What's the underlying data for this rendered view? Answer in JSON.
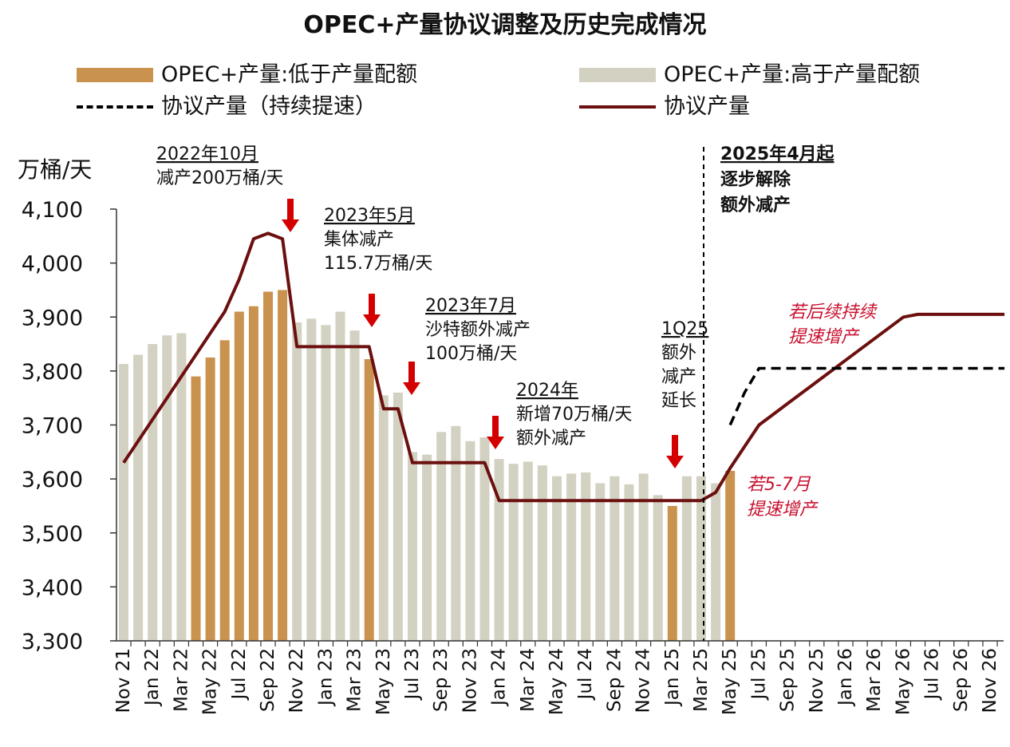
{
  "title": "OPEC+产量协议调整及历史完成情况",
  "legend": [
    {
      "label": "OPEC+产量:低于产量配额",
      "kind": "bar",
      "color": "#C9924F"
    },
    {
      "label": "OPEC+产量:高于产量配额",
      "kind": "bar",
      "color": "#D3D1C1"
    },
    {
      "label": "协议产量（持续提速）",
      "kind": "dashed",
      "color": "#000000"
    },
    {
      "label": "协议产量",
      "kind": "line",
      "color": "#6B0F0F"
    }
  ],
  "colors": {
    "below": "#C9924F",
    "above": "#D3D1C1",
    "agreement": "#6B0F0F",
    "dashed": "#000000",
    "arrow": "#D40000",
    "scenario_text": "#C8102E"
  },
  "chart_data": {
    "type": "bar",
    "ylabel": "万桶/天",
    "ylim": [
      3300,
      4100
    ],
    "yticks": [
      "3,300",
      "3,400",
      "3,500",
      "3,600",
      "3,700",
      "3,800",
      "3,900",
      "4,000",
      "4,100"
    ],
    "x": [
      "Nov 21",
      "Dec 21",
      "Jan 22",
      "Feb 22",
      "Mar 22",
      "Apr 22",
      "May 22",
      "Jun 22",
      "Jul 22",
      "Aug 22",
      "Sep 22",
      "Oct 22",
      "Nov 22",
      "Dec 22",
      "Jan 23",
      "Feb 23",
      "Mar 23",
      "Apr 23",
      "May 23",
      "Jun 23",
      "Jul 23",
      "Aug 23",
      "Sep 23",
      "Oct 23",
      "Nov 23",
      "Dec 23",
      "Jan 24",
      "Feb 24",
      "Mar 24",
      "Apr 24",
      "May 24",
      "Jun 24",
      "Jul 24",
      "Aug 24",
      "Sep 24",
      "Oct 24",
      "Nov 24",
      "Dec 24",
      "Jan 25",
      "Feb 25",
      "Mar 25",
      "Apr 25",
      "May 25",
      "Jun 25",
      "Jul 25",
      "Aug 25",
      "Sep 25",
      "Oct 25",
      "Nov 25",
      "Dec 25",
      "Jan 26",
      "Feb 26",
      "Mar 26",
      "Apr 26",
      "May 26",
      "Jun 26",
      "Jul 26",
      "Aug 26",
      "Sep 26",
      "Oct 26",
      "Nov 26",
      "Dec 26"
    ],
    "xtick_labels": [
      "Nov 21",
      "Jan 22",
      "Mar 22",
      "May 22",
      "Jul 22",
      "Sep 22",
      "Nov 22",
      "Jan 23",
      "Mar 23",
      "May 23",
      "Jul 23",
      "Sep 23",
      "Nov 23",
      "Jan 24",
      "Mar 24",
      "May 24",
      "Jul 24",
      "Sep 24",
      "Nov 24",
      "Jan 25",
      "Mar 25",
      "May 25",
      "Jul 25",
      "Sep 25",
      "Nov 25",
      "Jan 26",
      "Mar 26",
      "May 26",
      "Jul 26",
      "Sep 26",
      "Nov 26"
    ],
    "production": [
      3813,
      3830,
      3850,
      3866,
      3870,
      3790,
      3825,
      3857,
      3910,
      3920,
      3947,
      3950,
      3890,
      3897,
      3885,
      3910,
      3875,
      3822,
      3755,
      3760,
      3650,
      3645,
      3687,
      3698,
      3670,
      3677,
      3637,
      3628,
      3632,
      3625,
      3605,
      3610,
      3612,
      3592,
      3605,
      3590,
      3610,
      3570,
      3550,
      3605,
      3605,
      3592,
      3615
    ],
    "status": [
      "above",
      "above",
      "above",
      "above",
      "above",
      "below",
      "below",
      "below",
      "below",
      "below",
      "below",
      "below",
      "above",
      "above",
      "above",
      "above",
      "above",
      "below",
      "above",
      "above",
      "above",
      "above",
      "above",
      "above",
      "above",
      "above",
      "above",
      "above",
      "above",
      "above",
      "above",
      "above",
      "above",
      "above",
      "above",
      "above",
      "above",
      "above",
      "below",
      "above",
      "above",
      "above",
      "below"
    ],
    "agreement": [
      3630,
      3670,
      3710,
      3750,
      3790,
      3830,
      3870,
      3910,
      3970,
      4045,
      4055,
      4045,
      3845,
      3845,
      3845,
      3845,
      3845,
      3845,
      3730,
      3730,
      3630,
      3630,
      3630,
      3630,
      3630,
      3630,
      3560,
      3560,
      3560,
      3560,
      3560,
      3560,
      3560,
      3560,
      3560,
      3560,
      3560,
      3560,
      3560,
      3560,
      3560,
      3575,
      3620,
      3660,
      3700,
      3720,
      3740,
      3760,
      3780,
      3800,
      3820,
      3840,
      3860,
      3880,
      3900,
      3905,
      3905,
      3905,
      3905,
      3905,
      3905,
      3905
    ],
    "agreement_accelerated": [
      3700,
      3760,
      3805,
      3805,
      3805,
      3805,
      3805,
      3805,
      3805,
      3805,
      3805,
      3805,
      3805,
      3805,
      3805,
      3805,
      3805,
      3805,
      3805,
      3805
    ],
    "vertical_line_label": [
      "2025年4月起",
      "逐步解除",
      "额外减产"
    ],
    "annotations": [
      {
        "lines": [
          "2022年10月",
          "减产200万桶/天"
        ]
      },
      {
        "lines": [
          "2023年5月",
          "集体减产",
          "115.7万桶/天"
        ]
      },
      {
        "lines": [
          "2023年7月",
          "沙特额外减产",
          "100万桶/天"
        ]
      },
      {
        "lines": [
          "2024年",
          "新增70万桶/天",
          "额外减产"
        ]
      },
      {
        "lines": [
          "1Q25",
          "额外",
          "减产",
          "延长"
        ]
      }
    ],
    "scenario_labels": [
      {
        "lines": [
          "若后续持续",
          "提速增产"
        ]
      },
      {
        "lines": [
          "若5-7月",
          "提速增产"
        ]
      }
    ]
  }
}
